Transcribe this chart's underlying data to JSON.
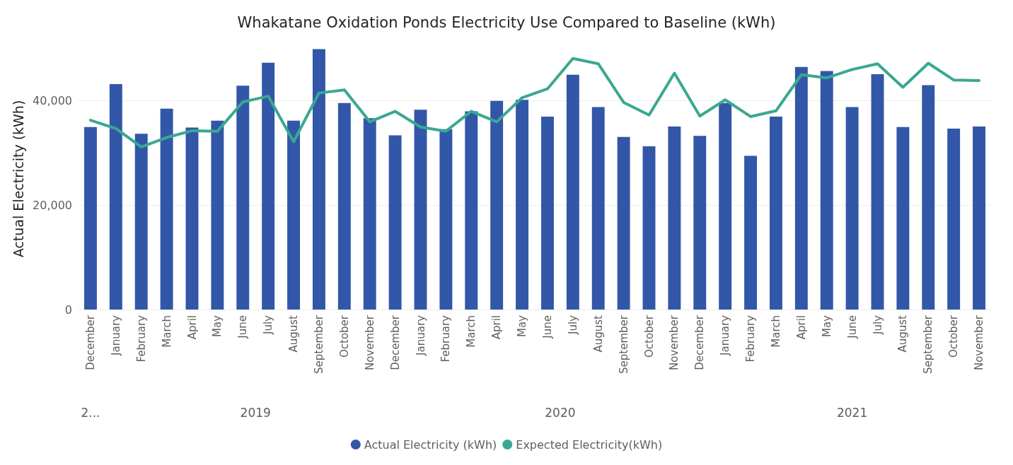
{
  "chart_data": {
    "type": "bar",
    "title": "Whakatane Oxidation Ponds Electricity Use Compared to Baseline (kWh)",
    "ylabel": "Actual Electricity (kWh)",
    "categories": [
      "December",
      "January",
      "February",
      "March",
      "April",
      "May",
      "June",
      "July",
      "August",
      "September",
      "October",
      "November",
      "December",
      "January",
      "February",
      "March",
      "April",
      "May",
      "June",
      "July",
      "August",
      "September",
      "October",
      "November",
      "December",
      "January",
      "February",
      "March",
      "April",
      "May",
      "June",
      "July",
      "August",
      "September",
      "October",
      "November"
    ],
    "annotations": [
      "2...",
      "2019",
      "2020",
      "2021"
    ],
    "series": [
      {
        "name": "Actual Electricity (kWh)",
        "color": "#3257a8",
        "values": [
          34900,
          43100,
          33600,
          38400,
          34800,
          36100,
          42800,
          47200,
          36100,
          49800,
          39500,
          36600,
          33300,
          38200,
          34500,
          37900,
          39900,
          40100,
          36900,
          44900,
          38700,
          33000,
          31200,
          35000,
          33200,
          39500,
          29400,
          36900,
          46400,
          45600,
          38700,
          45000,
          34900,
          42900,
          34600,
          35000
        ]
      },
      {
        "name": "Expected Electricity(kWh)",
        "type": "line",
        "color": "#3aa891",
        "values": [
          36200,
          34600,
          31100,
          32900,
          34200,
          34100,
          39700,
          40800,
          32100,
          41400,
          42000,
          35900,
          37900,
          34900,
          34100,
          37900,
          35900,
          40500,
          42200,
          48000,
          47000,
          39600,
          37200,
          45200,
          37000,
          40100,
          36900,
          38000,
          44900,
          44300,
          45900,
          47000,
          42500,
          47100,
          43900,
          43800
        ]
      }
    ],
    "ylim": [
      0,
      50000
    ],
    "yticks": [
      0,
      {
        "value": 20000,
        "label": "20,000"
      },
      {
        "value": 40000,
        "label": "40,000"
      }
    ],
    "grid": "y",
    "legend": "bottom",
    "marker": "none",
    "line_style": "solid"
  }
}
